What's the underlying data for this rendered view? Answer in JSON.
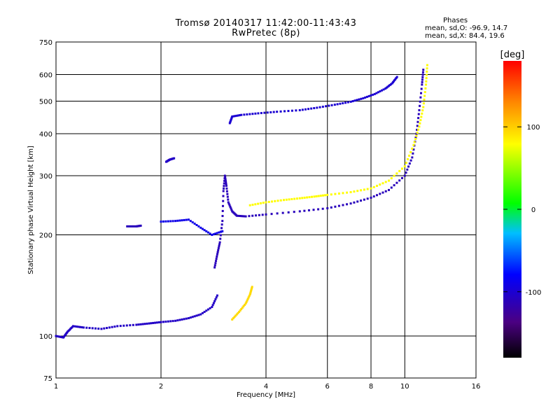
{
  "header": {
    "title_line1": "Tromsø 20140317 11:42:00-11:43:43",
    "title_line2": "RwPretec (8p)",
    "stats_title": "Phases",
    "stats_o": "mean, sd,O: -96.9, 14.7",
    "stats_x": "mean, sd,X:  84.4, 19.6"
  },
  "colorbar": {
    "unit_label": "[deg]",
    "tick_labels": [
      "100",
      "0",
      "-100"
    ],
    "tick_values": [
      100,
      0,
      -100
    ],
    "range": [
      -180,
      180
    ]
  },
  "chart_data": {
    "type": "scatter",
    "xlabel": "Frequency [MHz]",
    "ylabel": "Stationary phase Virtual Height [km]",
    "xscale": "log",
    "yscale": "log",
    "xlim": [
      1,
      16
    ],
    "ylim": [
      75,
      750
    ],
    "xticks": [
      1,
      2,
      4,
      6,
      8,
      10,
      16
    ],
    "xtick_labels": [
      "1",
      "2",
      "4",
      "6",
      "8",
      "10",
      "16"
    ],
    "yticks": [
      75,
      100,
      200,
      300,
      400,
      500,
      600,
      750
    ],
    "ytick_labels": [
      "75",
      "100",
      "200",
      "300",
      "400",
      "500",
      "600",
      "750"
    ],
    "grid": true,
    "point_color_by": "phase",
    "traces": [
      {
        "phase": -105,
        "points": [
          [
            1.0,
            100
          ],
          [
            1.05,
            99
          ],
          [
            1.08,
            103
          ],
          [
            1.12,
            107
          ],
          [
            1.2,
            106
          ],
          [
            1.35,
            105
          ],
          [
            1.5,
            107
          ],
          [
            1.7,
            108
          ],
          [
            1.85,
            109
          ],
          [
            2.0,
            110
          ],
          [
            2.2,
            111
          ],
          [
            2.4,
            113
          ],
          [
            2.6,
            116
          ],
          [
            2.8,
            122
          ],
          [
            2.9,
            132
          ]
        ]
      },
      {
        "phase": -110,
        "points": [
          [
            2.85,
            160
          ],
          [
            2.9,
            175
          ],
          [
            2.95,
            190
          ],
          [
            3.0,
            220
          ],
          [
            3.02,
            270
          ],
          [
            3.05,
            300
          ],
          [
            3.08,
            280
          ],
          [
            3.12,
            250
          ],
          [
            3.2,
            235
          ],
          [
            3.3,
            228
          ],
          [
            3.5,
            227
          ],
          [
            4.0,
            230
          ],
          [
            5.0,
            235
          ],
          [
            6.0,
            240
          ],
          [
            7.0,
            248
          ],
          [
            8.0,
            258
          ],
          [
            9.0,
            272
          ],
          [
            10.0,
            300
          ],
          [
            10.5,
            340
          ],
          [
            10.8,
            400
          ],
          [
            11.0,
            470
          ],
          [
            11.2,
            560
          ],
          [
            11.3,
            620
          ]
        ]
      },
      {
        "phase": -100,
        "points": [
          [
            3.15,
            430
          ],
          [
            3.2,
            450
          ],
          [
            3.4,
            455
          ],
          [
            3.8,
            460
          ],
          [
            4.3,
            465
          ],
          [
            5.0,
            470
          ],
          [
            5.6,
            478
          ],
          [
            6.3,
            488
          ],
          [
            7.0,
            498
          ],
          [
            7.6,
            510
          ],
          [
            8.2,
            525
          ],
          [
            8.8,
            545
          ],
          [
            9.2,
            565
          ],
          [
            9.5,
            590
          ]
        ]
      },
      {
        "phase": 80,
        "points": [
          [
            3.6,
            245
          ],
          [
            4.0,
            250
          ],
          [
            4.5,
            254
          ],
          [
            5.0,
            257
          ],
          [
            5.5,
            260
          ],
          [
            6.0,
            263
          ],
          [
            7.0,
            268
          ],
          [
            8.0,
            275
          ],
          [
            9.0,
            290
          ],
          [
            10.0,
            320
          ],
          [
            10.6,
            370
          ],
          [
            11.0,
            420
          ],
          [
            11.3,
            480
          ],
          [
            11.5,
            560
          ],
          [
            11.6,
            640
          ]
        ]
      },
      {
        "phase": 95,
        "points": [
          [
            3.2,
            112
          ],
          [
            3.35,
            118
          ],
          [
            3.5,
            125
          ],
          [
            3.6,
            133
          ],
          [
            3.65,
            140
          ]
        ]
      },
      {
        "phase": -90,
        "points": [
          [
            2.0,
            219
          ],
          [
            2.2,
            220
          ],
          [
            2.4,
            222
          ],
          [
            2.6,
            210
          ],
          [
            2.8,
            200
          ],
          [
            3.0,
            205
          ]
        ]
      },
      {
        "phase": -110,
        "points": [
          [
            1.6,
            212
          ],
          [
            1.7,
            212
          ],
          [
            1.75,
            213
          ]
        ]
      },
      {
        "phase": -105,
        "points": [
          [
            2.07,
            330
          ],
          [
            2.12,
            335
          ],
          [
            2.18,
            338
          ]
        ]
      }
    ]
  }
}
